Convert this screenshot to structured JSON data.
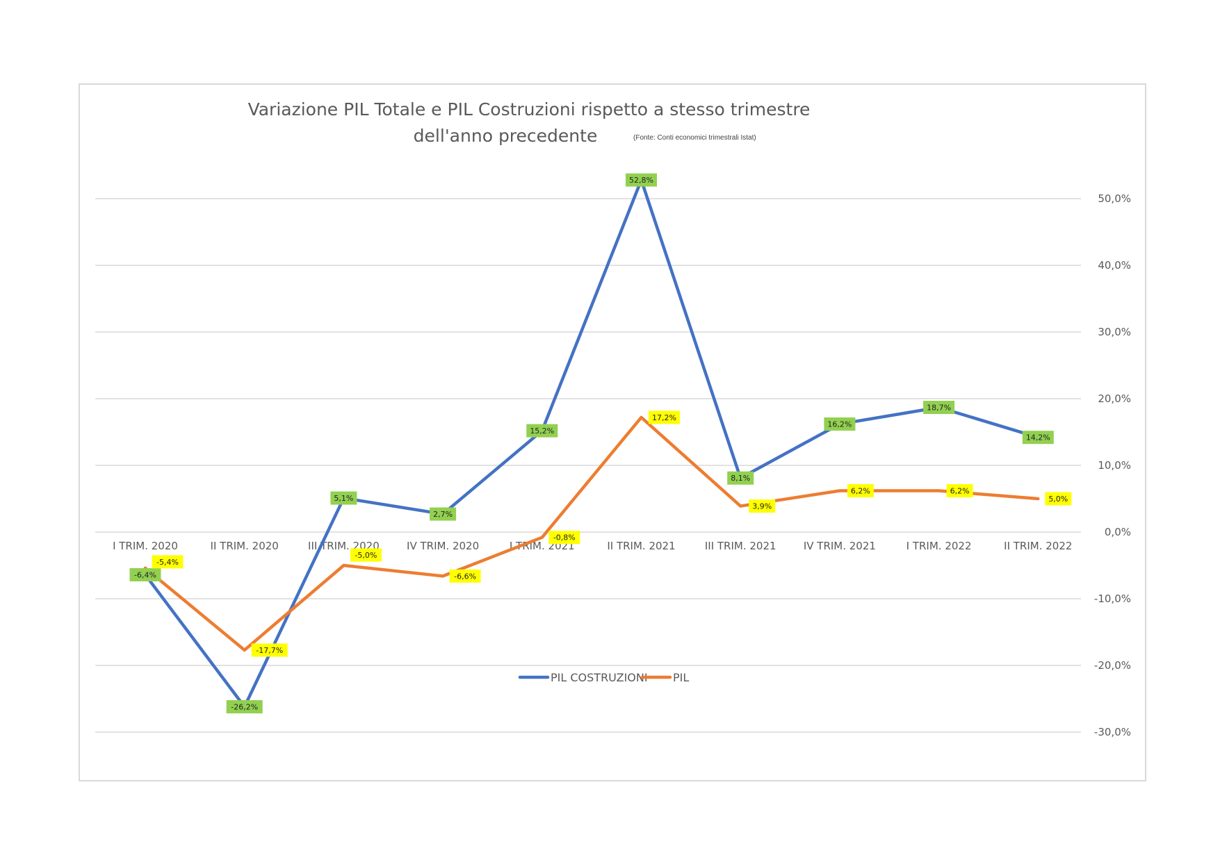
{
  "chart_data": {
    "type": "line",
    "title_line1": "Variazione PIL Totale e PIL Costruzioni rispetto a stesso trimestre",
    "title_line2": "dell'anno precedente",
    "title_note": "(Fonte: Conti economici trimestrali Istat)",
    "categories": [
      "I TRIM. 2020",
      "II TRIM. 2020",
      "III TRIM. 2020",
      "IV TRIM. 2020",
      "I TRIM. 2021",
      "II TRIM. 2021",
      "III TRIM. 2021",
      "IV TRIM. 2021",
      "I TRIM. 2022",
      "II TRIM. 2022"
    ],
    "y_ticks": [
      50,
      40,
      30,
      20,
      10,
      0,
      -10,
      -20,
      -30
    ],
    "y_tick_labels": [
      "50,0%",
      "40,0%",
      "30,0%",
      "20,0%",
      "10,0%",
      "0,0%",
      "-10,0%",
      "-20,0%",
      "-30,0%"
    ],
    "ylim": [
      -30,
      50
    ],
    "grid": true,
    "legend_position": "bottom",
    "series": [
      {
        "name": "PIL COSTRUZIONI",
        "color": "#4472c4",
        "label_bg": "#92d050",
        "values": [
          -6.4,
          -26.2,
          5.1,
          2.7,
          15.2,
          52.8,
          8.1,
          16.2,
          18.7,
          14.2
        ],
        "labels": [
          "-6,4%",
          "-26,2%",
          "5,1%",
          "2,7%",
          "15,2%",
          "52,8%",
          "8,1%",
          "16,2%",
          "18,7%",
          "14,2%"
        ]
      },
      {
        "name": "PIL",
        "color": "#ed7d31",
        "label_bg": "#ffff00",
        "values": [
          -5.4,
          -17.7,
          -5.0,
          -6.6,
          -0.8,
          17.2,
          3.9,
          6.2,
          6.2,
          5.0
        ],
        "labels": [
          "-5,4%",
          "-17,7%",
          "-5,0%",
          "-6,6%",
          "-0,8%",
          "17,2%",
          "3,9%",
          "6,2%",
          "6,2%",
          "5,0%"
        ]
      }
    ]
  }
}
